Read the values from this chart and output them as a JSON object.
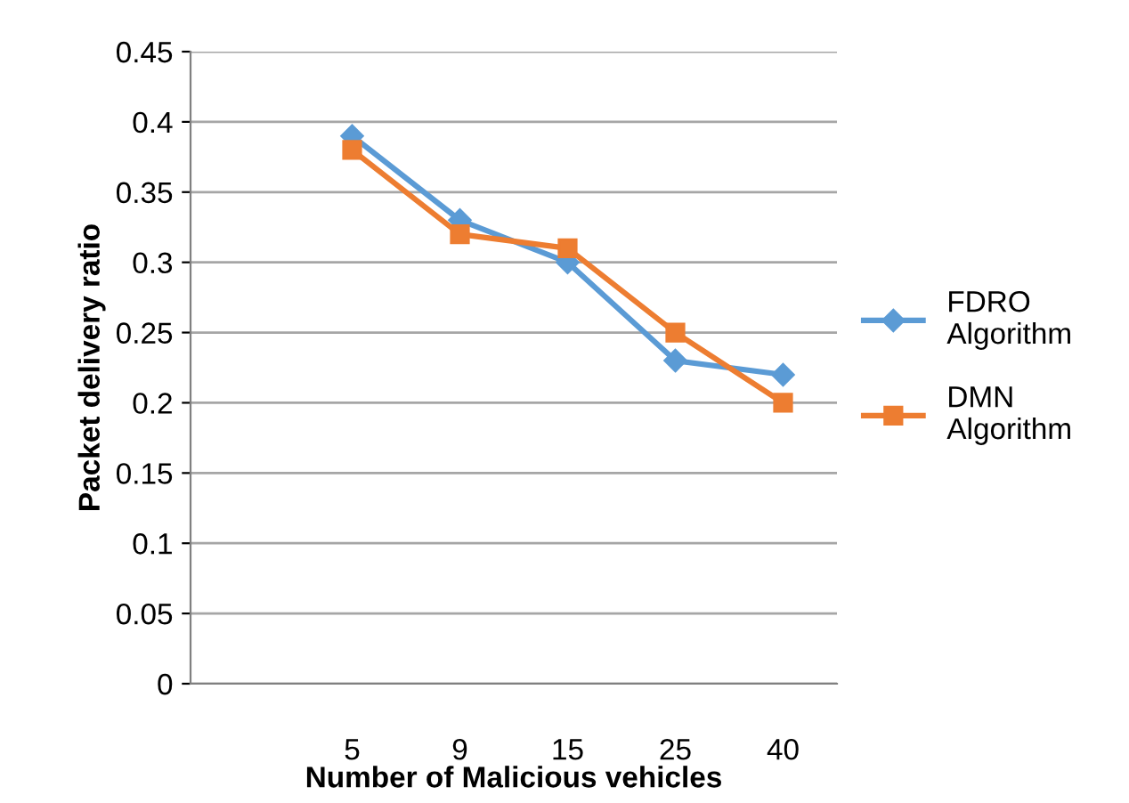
{
  "chart_data": {
    "type": "line",
    "xlabel": "Number of Malicious vehicles",
    "ylabel": "Packet delivery ratio",
    "categories": [
      null,
      "5",
      "9",
      "15",
      "25",
      "40"
    ],
    "series": [
      {
        "name": "FDRO Algorithm",
        "color": "#5b9bd5",
        "marker": "diamond",
        "values": [
          null,
          0.39,
          0.33,
          0.3,
          0.23,
          0.22
        ]
      },
      {
        "name": "DMN Algorithm",
        "color": "#ed7d31",
        "marker": "square",
        "values": [
          null,
          0.38,
          0.32,
          0.31,
          0.25,
          0.2
        ]
      }
    ],
    "ylim": [
      0,
      0.45
    ],
    "yticks": [
      0,
      0.05,
      0.1,
      0.15,
      0.2,
      0.25,
      0.3,
      0.35,
      0.4,
      0.45
    ],
    "grid": "y",
    "legend": "right"
  }
}
